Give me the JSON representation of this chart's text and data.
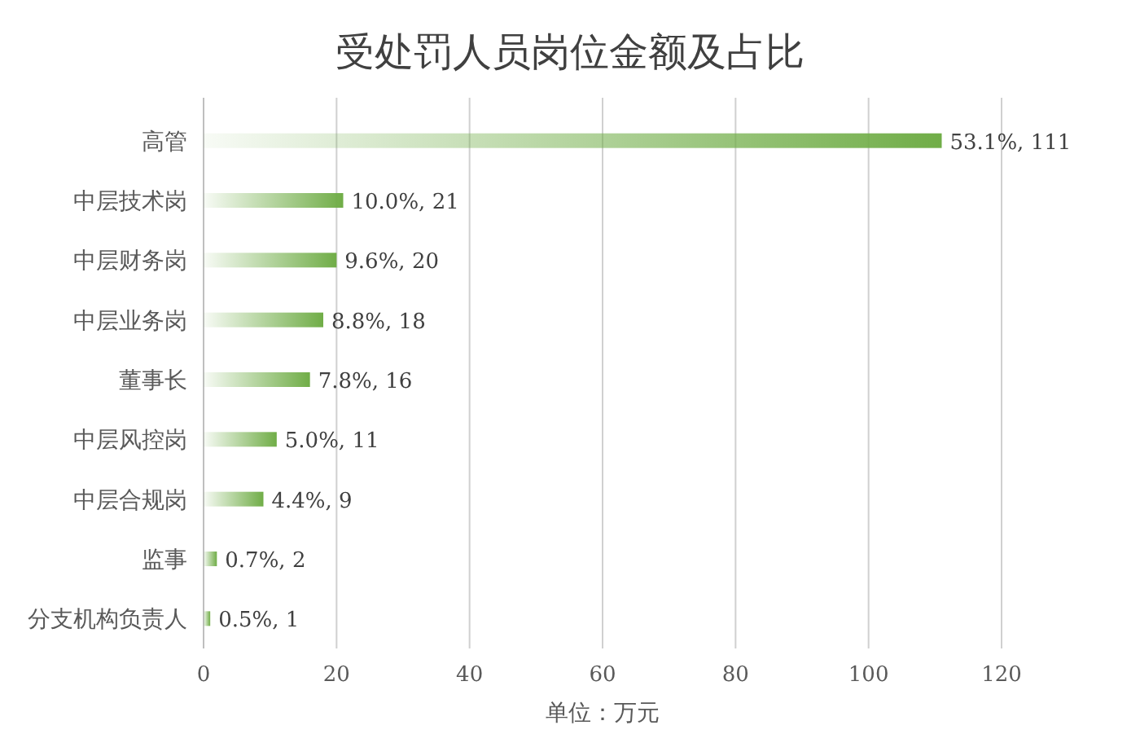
{
  "chart_data": {
    "type": "bar",
    "orientation": "horizontal",
    "title": "受处罚人员岗位金额及占比",
    "xlabel": "单位：万元",
    "categories": [
      "高管",
      "中层技术岗",
      "中层财务岗",
      "中层业务岗",
      "董事长",
      "中层风控岗",
      "中层合规岗",
      "监事",
      "分支机构负责人"
    ],
    "values": [
      111,
      21,
      20,
      18,
      16,
      11,
      9,
      2,
      1
    ],
    "value_labels": [
      "53.1%, 111",
      "10.0%, 21",
      "9.6%, 20",
      "8.8%, 18",
      "7.8%, 16",
      "5.0%, 11",
      "4.4%, 9",
      "0.7%, 2",
      "0.5%, 1"
    ],
    "color": "#70ad47",
    "xlim": [
      0,
      120
    ],
    "xticks": [
      0,
      20,
      40,
      60,
      80,
      100,
      120
    ],
    "grid": "x"
  }
}
